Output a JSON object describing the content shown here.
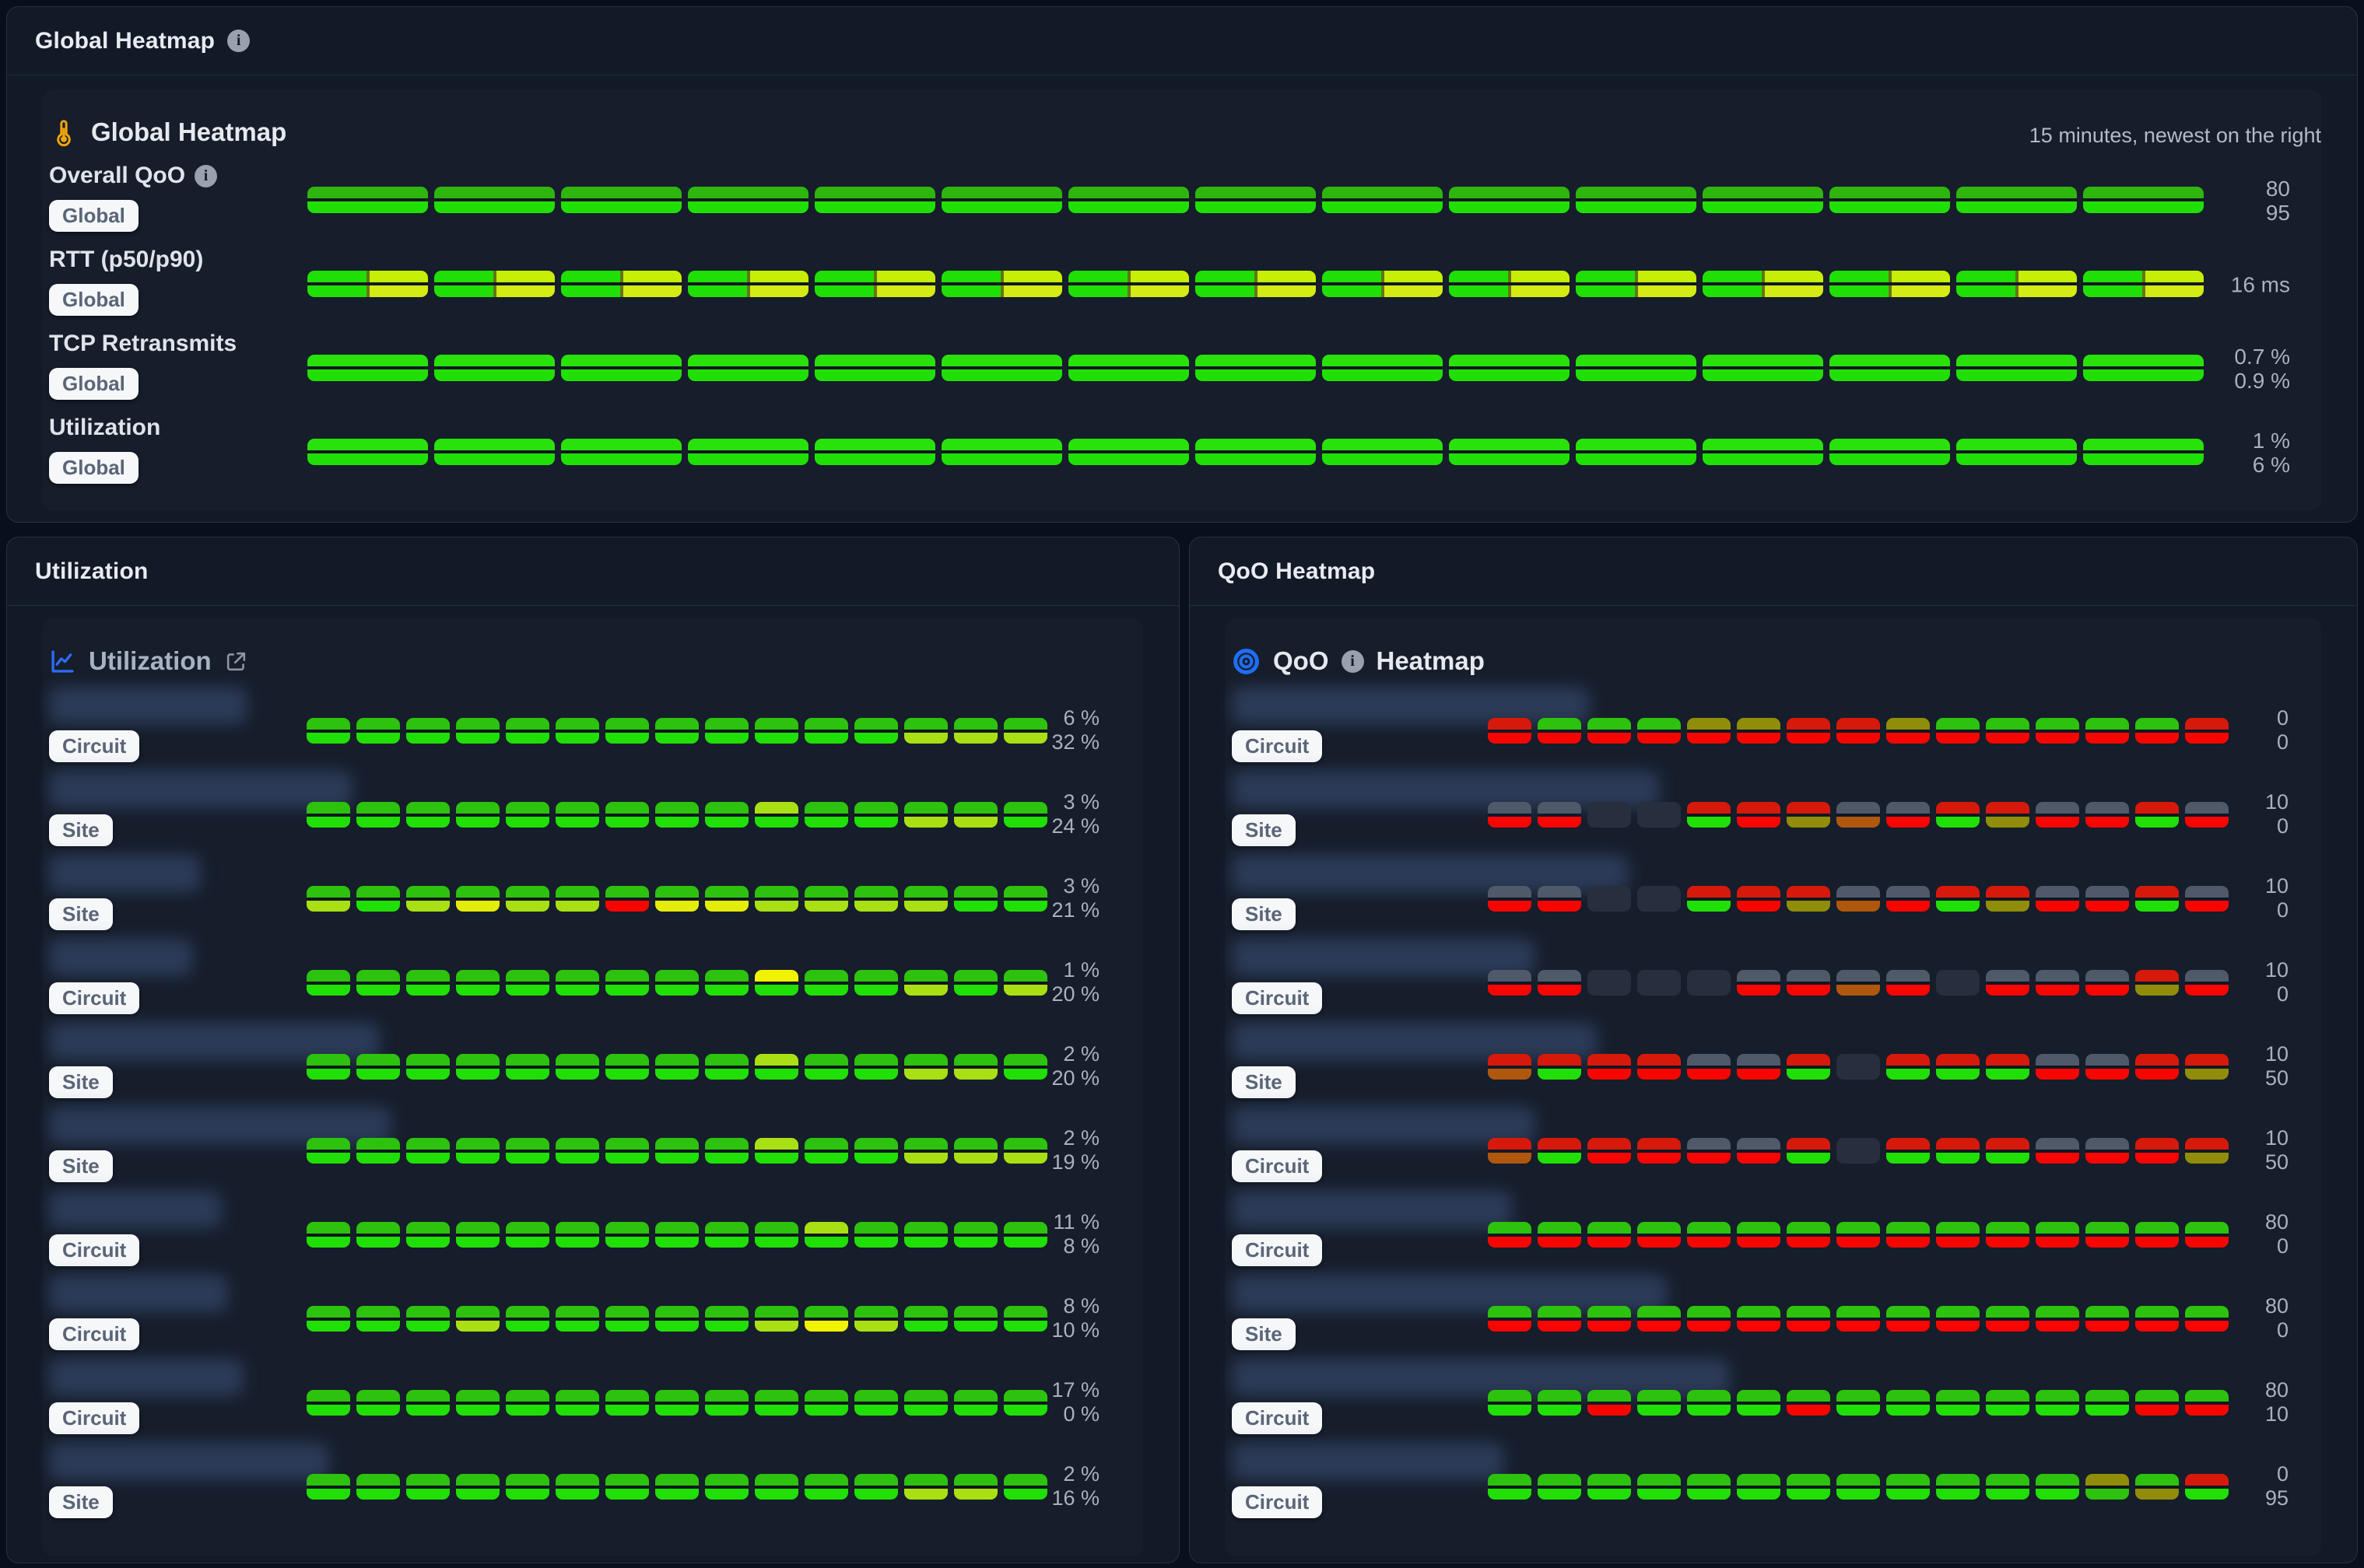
{
  "palette": {
    "g2": "#2eb60e",
    "G": "#20df05",
    "E": "#29e20a",
    "l2": "#c7ee06",
    "y2": "#d5eb14",
    "g": "#2dc20d",
    "l": "#a8e014",
    "y": "#e4ec0a",
    "Y": "#f2f203",
    "r": "#d6190b",
    "R": "#f70500",
    "o": "#908d0a",
    "b": "#b0570e",
    "s": "#4f5969",
    "d": "#272e3d"
  },
  "accent": {
    "blue": "#2f6bf3",
    "amber": "#f0a50c",
    "badge_bg": "#f5f7f9",
    "badge_text": "#5a6577"
  },
  "global_panel": {
    "header": {
      "title": "Global Heatmap"
    },
    "card": {
      "icon": "thermometer-icon",
      "title": "Global Heatmap",
      "subtitle": "15 minutes, newest on the right",
      "rows": [
        {
          "label": "Overall QoO",
          "has_info": true,
          "badge": "Global",
          "values": [
            "80",
            "95"
          ],
          "cells": [
            "g2/G",
            "g2/G",
            "g2/G",
            "g2/G",
            "g2/G",
            "g2/G",
            "g2/G",
            "g2/G",
            "g2/G",
            "g2/G",
            "g2/G",
            "g2/G",
            "g2/G",
            "g2/G",
            "g2/G"
          ]
        },
        {
          "label": "RTT (p50/p90)",
          "has_info": false,
          "badge": "Global",
          "values": [
            "16 ms"
          ],
          "cells": [
            "G,l2/G,y2",
            "G,l2/G,y2",
            "G,l2/G,y2",
            "G,l2/G,y2",
            "G,l2/G,y2",
            "G,l2/G,y2",
            "G,l2/G,y2",
            "G,l2/G,y2",
            "G,l2/G,y2",
            "G,l2/G,y2",
            "G,l2/G,y2",
            "G,l2/G,y2",
            "G,l2/G,y2",
            "G,l2/G,y2",
            "G,l2/G,y2"
          ]
        },
        {
          "label": "TCP Retransmits",
          "has_info": false,
          "badge": "Global",
          "values": [
            "0.7 %",
            "0.9 %"
          ],
          "cells": [
            "E/G",
            "E/G",
            "E/G",
            "E/G",
            "E/G",
            "E/G",
            "E/G",
            "E/G",
            "E/G",
            "E/G",
            "E/G",
            "E/G",
            "E/G",
            "E/G",
            "E/G"
          ]
        },
        {
          "label": "Utilization",
          "has_info": false,
          "badge": "Global",
          "values": [
            "1 %",
            "6 %"
          ],
          "cells": [
            "E/G",
            "E/G",
            "E/G",
            "E/G",
            "E/G",
            "E/G",
            "E/G",
            "E/G",
            "E/G",
            "E/G",
            "E/G",
            "E/G",
            "E/G",
            "E/G",
            "E/G"
          ]
        }
      ]
    }
  },
  "utilization_panel": {
    "header": {
      "title": "Utilization"
    },
    "card": {
      "icon": "line-chart-icon",
      "title": "Utilization",
      "has_external_link": true,
      "rows": [
        {
          "badge": "Circuit",
          "name_width": 255,
          "values": [
            "6 %",
            "32 %"
          ],
          "cells": [
            "g/G",
            "g/G",
            "g/G",
            "g/G",
            "g/G",
            "g/G",
            "g/G",
            "g/G",
            "g/G",
            "g/G",
            "g/G",
            "g/G",
            "g/l",
            "g/l",
            "g/l"
          ]
        },
        {
          "badge": "Site",
          "name_width": 390,
          "values": [
            "3 %",
            "24 %"
          ],
          "cells": [
            "g/G",
            "g/G",
            "g/G",
            "g/G",
            "g/G",
            "g/G",
            "g/G",
            "g/G",
            "g/G",
            "l/G",
            "g/G",
            "g/G",
            "g/l",
            "g/l",
            "g/G"
          ]
        },
        {
          "badge": "Site",
          "name_width": 195,
          "values": [
            "3 %",
            "21 %"
          ],
          "cells": [
            "g/l",
            "g/G",
            "g/l",
            "g/y",
            "g/l",
            "g/l",
            "g/R",
            "g/y",
            "g/y",
            "g/l",
            "g/l",
            "g/l",
            "g/l",
            "g/G",
            "g/G"
          ]
        },
        {
          "badge": "Circuit",
          "name_width": 185,
          "values": [
            "1 %",
            "20 %"
          ],
          "cells": [
            "g/G",
            "g/G",
            "g/G",
            "g/G",
            "g/G",
            "g/G",
            "g/G",
            "g/G",
            "g/G",
            "Y/G",
            "g/G",
            "g/G",
            "g/l",
            "g/G",
            "g/l"
          ]
        },
        {
          "badge": "Site",
          "name_width": 425,
          "values": [
            "2 %",
            "20 %"
          ],
          "cells": [
            "g/G",
            "g/G",
            "g/G",
            "g/G",
            "g/G",
            "g/G",
            "g/G",
            "g/G",
            "g/G",
            "l/G",
            "g/G",
            "g/G",
            "g/l",
            "g/l",
            "g/G"
          ]
        },
        {
          "badge": "Site",
          "name_width": 440,
          "values": [
            "2 %",
            "19 %"
          ],
          "cells": [
            "g/G",
            "g/G",
            "g/G",
            "g/G",
            "g/G",
            "g/G",
            "g/G",
            "g/G",
            "g/G",
            "l/G",
            "g/G",
            "g/G",
            "g/l",
            "g/l",
            "g/l"
          ]
        },
        {
          "badge": "Circuit",
          "name_width": 222,
          "values": [
            "11 %",
            "8 %"
          ],
          "cells": [
            "g/G",
            "g/G",
            "g/G",
            "g/G",
            "g/G",
            "g/G",
            "g/G",
            "g/G",
            "g/G",
            "g/G",
            "l/G",
            "g/G",
            "g/G",
            "g/G",
            "g/G"
          ]
        },
        {
          "badge": "Circuit",
          "name_width": 230,
          "values": [
            "8 %",
            "10 %"
          ],
          "cells": [
            "g/G",
            "g/G",
            "g/G",
            "g/l",
            "g/G",
            "g/G",
            "g/G",
            "g/G",
            "g/G",
            "g/l",
            "g/Y",
            "g/l",
            "g/G",
            "g/G",
            "g/G"
          ]
        },
        {
          "badge": "Circuit",
          "name_width": 250,
          "values": [
            "17 %",
            "0 %"
          ],
          "cells": [
            "g/G",
            "g/G",
            "g/G",
            "g/G",
            "g/G",
            "g/G",
            "g/G",
            "g/G",
            "g/G",
            "g/G",
            "g/G",
            "g/G",
            "g/G",
            "g/G",
            "g/G"
          ]
        },
        {
          "badge": "Site",
          "name_width": 360,
          "values": [
            "2 %",
            "16 %"
          ],
          "cells": [
            "g/G",
            "g/G",
            "g/G",
            "g/G",
            "g/G",
            "g/G",
            "g/G",
            "g/G",
            "g/G",
            "g/G",
            "g/G",
            "g/G",
            "g/l",
            "g/l",
            "g/G"
          ]
        }
      ]
    }
  },
  "qoo_panel": {
    "header": {
      "title": "QoO Heatmap"
    },
    "card": {
      "icon": "bullseye-icon",
      "title_prefix": "QoO",
      "has_info": true,
      "title_suffix": "Heatmap",
      "rows": [
        {
          "badge": "Circuit",
          "name_width": 460,
          "values": [
            "0",
            "0"
          ],
          "cells": [
            "r/R",
            "g/R",
            "g/R",
            "g/R",
            "o/R",
            "o/R",
            "r/R",
            "r/R",
            "o/R",
            "g/R",
            "g/R",
            "g/R",
            "g/R",
            "g/R",
            "r/R"
          ]
        },
        {
          "badge": "Site",
          "name_width": 550,
          "values": [
            "10",
            "0"
          ],
          "cells": [
            "s/R",
            "s/R",
            "d/d",
            "d/d",
            "r/G",
            "r/R",
            "r/o",
            "s/b",
            "s/R",
            "r/G",
            "r/o",
            "s/R",
            "s/R",
            "r/G",
            "s/R"
          ]
        },
        {
          "badge": "Site",
          "name_width": 510,
          "values": [
            "10",
            "0"
          ],
          "cells": [
            "s/R",
            "s/R",
            "d/d",
            "d/d",
            "r/G",
            "r/R",
            "r/o",
            "s/b",
            "s/R",
            "r/G",
            "r/o",
            "s/R",
            "s/R",
            "r/G",
            "s/R"
          ]
        },
        {
          "badge": "Circuit",
          "name_width": 390,
          "values": [
            "10",
            "0"
          ],
          "cells": [
            "s/R",
            "s/R",
            "d/d",
            "d/d",
            "d/d",
            "s/R",
            "s/R",
            "s/b",
            "s/R",
            "d/d",
            "s/R",
            "s/R",
            "s/R",
            "r/o",
            "s/R"
          ]
        },
        {
          "badge": "Site",
          "name_width": 470,
          "values": [
            "10",
            "50"
          ],
          "cells": [
            "r/b",
            "r/G",
            "r/R",
            "r/R",
            "s/R",
            "s/R",
            "r/G",
            "d/d",
            "r/G",
            "r/G",
            "r/G",
            "s/R",
            "s/R",
            "r/R",
            "r/o"
          ]
        },
        {
          "badge": "Circuit",
          "name_width": 390,
          "values": [
            "10",
            "50"
          ],
          "cells": [
            "r/b",
            "r/G",
            "r/R",
            "r/R",
            "s/R",
            "s/R",
            "r/G",
            "d/d",
            "r/G",
            "r/G",
            "r/G",
            "s/R",
            "s/R",
            "r/R",
            "r/o"
          ]
        },
        {
          "badge": "Circuit",
          "name_width": 360,
          "values": [
            "80",
            "0"
          ],
          "cells": [
            "g/R",
            "g/R",
            "g/R",
            "g/R",
            "g/R",
            "g/R",
            "g/R",
            "g/R",
            "g/R",
            "g/R",
            "g/R",
            "g/R",
            "g/R",
            "g/R",
            "g/R"
          ]
        },
        {
          "badge": "Site",
          "name_width": 560,
          "values": [
            "80",
            "0"
          ],
          "cells": [
            "g/R",
            "g/R",
            "g/R",
            "g/R",
            "g/R",
            "g/R",
            "g/R",
            "g/R",
            "g/R",
            "g/R",
            "g/R",
            "g/R",
            "g/R",
            "g/R",
            "g/R"
          ]
        },
        {
          "badge": "Circuit",
          "name_width": 640,
          "values": [
            "80",
            "10"
          ],
          "cells": [
            "g/G",
            "g/G",
            "g/R",
            "g/G",
            "g/G",
            "g/G",
            "g/R",
            "g/G",
            "g/G",
            "g/G",
            "g/G",
            "g/G",
            "g/G",
            "g/R",
            "g/R"
          ]
        },
        {
          "badge": "Circuit",
          "name_width": 350,
          "values": [
            "0",
            "95"
          ],
          "cells": [
            "g/G",
            "g/G",
            "g/G",
            "g/G",
            "g/G",
            "g/G",
            "g/G",
            "g/G",
            "g/G",
            "g/G",
            "g/G",
            "g/G",
            "o/g",
            "g/o",
            "r/G"
          ]
        }
      ]
    }
  }
}
